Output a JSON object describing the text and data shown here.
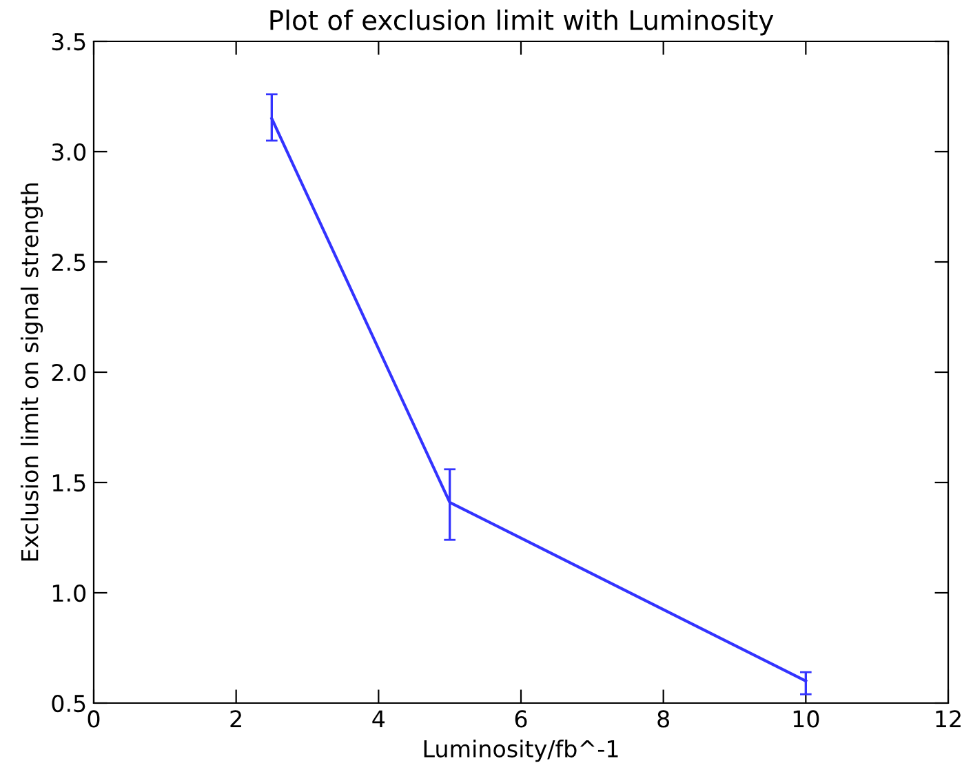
{
  "chart_data": {
    "type": "line",
    "title": "Plot of exclusion limit with Luminosity",
    "xlabel": "Luminosity/fb^-1",
    "ylabel": "Exclusion limit on signal strength",
    "x": [
      2.5,
      5,
      10
    ],
    "series": [
      {
        "color": "#3333ff",
        "values": [
          3.15,
          1.41,
          0.6
        ],
        "errors": [
          [
            3.05,
            3.26
          ],
          [
            1.24,
            1.56
          ],
          [
            0.54,
            0.64
          ]
        ]
      }
    ],
    "xlim": [
      0,
      12
    ],
    "xticks": [
      0,
      2,
      4,
      6,
      8,
      10,
      12
    ],
    "ylim": [
      0.5,
      3.5
    ],
    "yticks": [
      0.5,
      {
        "value": 1,
        "label": "1.0"
      },
      1.5,
      {
        "value": 2,
        "label": "2.0"
      },
      2.5,
      {
        "value": 3,
        "label": "3.0"
      },
      3.5
    ],
    "marker": "none",
    "line_style": "solid",
    "grid": false,
    "legend": false
  }
}
